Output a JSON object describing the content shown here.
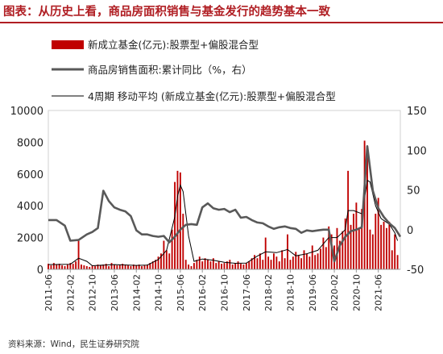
{
  "header": {
    "title": "图表：从历史上看，商品房面积销售与基金发行的趋势基本一致"
  },
  "footer": {
    "source": "资料来源：Wind，民生证券研究院"
  },
  "colors": {
    "bars": "#c00000",
    "line": "#595959",
    "ma": "#000000",
    "title": "#b01e23"
  },
  "chart_data": {
    "type": "bar",
    "x_ticks": [
      "2011-06",
      "2012-02",
      "2012-10",
      "2013-06",
      "2014-02",
      "2014-10",
      "2015-06",
      "2016-02",
      "2016-10",
      "2017-06",
      "2018-02",
      "2018-10",
      "2019-06",
      "2020-02",
      "2020-10",
      "2021-06"
    ],
    "left_axis": {
      "min": 0,
      "max": 10000,
      "ticks": [
        0,
        2000,
        4000,
        6000,
        8000,
        10000
      ]
    },
    "right_axis": {
      "min": -50,
      "max": 150,
      "ticks": [
        -50,
        0,
        50,
        100,
        150
      ]
    },
    "x_range": [
      "2011-06",
      "2022-02"
    ],
    "series": [
      {
        "name": "新成立基金(亿元):股票型+偏股混合型",
        "type": "bar",
        "axis": "left",
        "values": [
          {
            "x": "2011-06",
            "y": 350
          },
          {
            "x": "2011-07",
            "y": 250
          },
          {
            "x": "2011-08",
            "y": 400
          },
          {
            "x": "2011-09",
            "y": 300
          },
          {
            "x": "2011-10",
            "y": 350
          },
          {
            "x": "2011-11",
            "y": 250
          },
          {
            "x": "2011-12",
            "y": 200
          },
          {
            "x": "2012-01",
            "y": 300
          },
          {
            "x": "2012-02",
            "y": 400
          },
          {
            "x": "2012-03",
            "y": 350
          },
          {
            "x": "2012-04",
            "y": 500
          },
          {
            "x": "2012-05",
            "y": 1800
          },
          {
            "x": "2012-06",
            "y": 300
          },
          {
            "x": "2012-07",
            "y": 250
          },
          {
            "x": "2012-08",
            "y": 200
          },
          {
            "x": "2012-09",
            "y": 150
          },
          {
            "x": "2012-10",
            "y": 250
          },
          {
            "x": "2012-11",
            "y": 200
          },
          {
            "x": "2012-12",
            "y": 300
          },
          {
            "x": "2013-01",
            "y": 250
          },
          {
            "x": "2013-02",
            "y": 300
          },
          {
            "x": "2013-03",
            "y": 350
          },
          {
            "x": "2013-04",
            "y": 200
          },
          {
            "x": "2013-05",
            "y": 400
          },
          {
            "x": "2013-06",
            "y": 300
          },
          {
            "x": "2013-07",
            "y": 250
          },
          {
            "x": "2013-08",
            "y": 300
          },
          {
            "x": "2013-09",
            "y": 350
          },
          {
            "x": "2013-10",
            "y": 300
          },
          {
            "x": "2013-11",
            "y": 250
          },
          {
            "x": "2013-12",
            "y": 200
          },
          {
            "x": "2014-01",
            "y": 300
          },
          {
            "x": "2014-02",
            "y": 250
          },
          {
            "x": "2014-03",
            "y": 300
          },
          {
            "x": "2014-04",
            "y": 200
          },
          {
            "x": "2014-05",
            "y": 250
          },
          {
            "x": "2014-06",
            "y": 300
          },
          {
            "x": "2014-07",
            "y": 400
          },
          {
            "x": "2014-08",
            "y": 500
          },
          {
            "x": "2014-09",
            "y": 600
          },
          {
            "x": "2014-10",
            "y": 800
          },
          {
            "x": "2014-11",
            "y": 1000
          },
          {
            "x": "2014-12",
            "y": 1800
          },
          {
            "x": "2015-01",
            "y": 1200
          },
          {
            "x": "2015-02",
            "y": 1000
          },
          {
            "x": "2015-03",
            "y": 2500
          },
          {
            "x": "2015-04",
            "y": 5500
          },
          {
            "x": "2015-05",
            "y": 6200
          },
          {
            "x": "2015-06",
            "y": 6100
          },
          {
            "x": "2015-07",
            "y": 3500
          },
          {
            "x": "2015-08",
            "y": 600
          },
          {
            "x": "2015-09",
            "y": 300
          },
          {
            "x": "2015-10",
            "y": 200
          },
          {
            "x": "2015-11",
            "y": 400
          },
          {
            "x": "2015-12",
            "y": 600
          },
          {
            "x": "2016-01",
            "y": 800
          },
          {
            "x": "2016-02",
            "y": 500
          },
          {
            "x": "2016-03",
            "y": 700
          },
          {
            "x": "2016-04",
            "y": 600
          },
          {
            "x": "2016-05",
            "y": 500
          },
          {
            "x": "2016-06",
            "y": 700
          },
          {
            "x": "2016-07",
            "y": 400
          },
          {
            "x": "2016-08",
            "y": 500
          },
          {
            "x": "2016-09",
            "y": 350
          },
          {
            "x": "2016-10",
            "y": 400
          },
          {
            "x": "2016-11",
            "y": 500
          },
          {
            "x": "2016-12",
            "y": 600
          },
          {
            "x": "2017-01",
            "y": 300
          },
          {
            "x": "2017-02",
            "y": 400
          },
          {
            "x": "2017-03",
            "y": 500
          },
          {
            "x": "2017-04",
            "y": 350
          },
          {
            "x": "2017-05",
            "y": 300
          },
          {
            "x": "2017-06",
            "y": 400
          },
          {
            "x": "2017-07",
            "y": 500
          },
          {
            "x": "2017-08",
            "y": 700
          },
          {
            "x": "2017-09",
            "y": 900
          },
          {
            "x": "2017-10",
            "y": 700
          },
          {
            "x": "2017-11",
            "y": 1000
          },
          {
            "x": "2017-12",
            "y": 600
          },
          {
            "x": "2018-01",
            "y": 2000
          },
          {
            "x": "2018-02",
            "y": 800
          },
          {
            "x": "2018-03",
            "y": 600
          },
          {
            "x": "2018-04",
            "y": 1000
          },
          {
            "x": "2018-05",
            "y": 800
          },
          {
            "x": "2018-06",
            "y": 500
          },
          {
            "x": "2018-07",
            "y": 1200
          },
          {
            "x": "2018-08",
            "y": 700
          },
          {
            "x": "2018-09",
            "y": 2200
          },
          {
            "x": "2018-10",
            "y": 600
          },
          {
            "x": "2018-11",
            "y": 800
          },
          {
            "x": "2018-12",
            "y": 1100
          },
          {
            "x": "2019-01",
            "y": 900
          },
          {
            "x": "2019-02",
            "y": 700
          },
          {
            "x": "2019-03",
            "y": 1200
          },
          {
            "x": "2019-04",
            "y": 1000
          },
          {
            "x": "2019-05",
            "y": 800
          },
          {
            "x": "2019-06",
            "y": 1500
          },
          {
            "x": "2019-07",
            "y": 900
          },
          {
            "x": "2019-08",
            "y": 1000
          },
          {
            "x": "2019-09",
            "y": 1300
          },
          {
            "x": "2019-10",
            "y": 2000
          },
          {
            "x": "2019-11",
            "y": 1400
          },
          {
            "x": "2019-12",
            "y": 2700
          },
          {
            "x": "2020-01",
            "y": 2200
          },
          {
            "x": "2020-02",
            "y": 1500
          },
          {
            "x": "2020-03",
            "y": 2600
          },
          {
            "x": "2020-04",
            "y": 1800
          },
          {
            "x": "2020-05",
            "y": 2400
          },
          {
            "x": "2020-06",
            "y": 3200
          },
          {
            "x": "2020-07",
            "y": 6200
          },
          {
            "x": "2020-08",
            "y": 2800
          },
          {
            "x": "2020-09",
            "y": 3500
          },
          {
            "x": "2020-10",
            "y": 4200
          },
          {
            "x": "2020-11",
            "y": 2600
          },
          {
            "x": "2020-12",
            "y": 3800
          },
          {
            "x": "2021-01",
            "y": 8100
          },
          {
            "x": "2021-02",
            "y": 7700
          },
          {
            "x": "2021-03",
            "y": 2500
          },
          {
            "x": "2021-04",
            "y": 2200
          },
          {
            "x": "2021-05",
            "y": 3500
          },
          {
            "x": "2021-06",
            "y": 4500
          },
          {
            "x": "2021-07",
            "y": 2800
          },
          {
            "x": "2021-08",
            "y": 3000
          },
          {
            "x": "2021-09",
            "y": 2600
          },
          {
            "x": "2021-10",
            "y": 3000
          },
          {
            "x": "2021-11",
            "y": 1200
          },
          {
            "x": "2021-12",
            "y": 2200
          },
          {
            "x": "2022-01",
            "y": 900
          }
        ]
      },
      {
        "name": "商品房销售面积:累计同比（%，右）",
        "type": "line",
        "axis": "right",
        "values": [
          {
            "x": "2011-06",
            "y": 12
          },
          {
            "x": "2011-09",
            "y": 12
          },
          {
            "x": "2011-12",
            "y": 5
          },
          {
            "x": "2012-02",
            "y": -14
          },
          {
            "x": "2012-05",
            "y": -13
          },
          {
            "x": "2012-08",
            "y": -6
          },
          {
            "x": "2012-10",
            "y": -3
          },
          {
            "x": "2012-12",
            "y": 2
          },
          {
            "x": "2013-02",
            "y": 49
          },
          {
            "x": "2013-04",
            "y": 36
          },
          {
            "x": "2013-06",
            "y": 28
          },
          {
            "x": "2013-08",
            "y": 25
          },
          {
            "x": "2013-10",
            "y": 23
          },
          {
            "x": "2013-12",
            "y": 17
          },
          {
            "x": "2014-02",
            "y": -1
          },
          {
            "x": "2014-04",
            "y": -6
          },
          {
            "x": "2014-06",
            "y": -6
          },
          {
            "x": "2014-08",
            "y": -8
          },
          {
            "x": "2014-10",
            "y": -9
          },
          {
            "x": "2014-12",
            "y": -8
          },
          {
            "x": "2015-02",
            "y": -16
          },
          {
            "x": "2015-04",
            "y": -9
          },
          {
            "x": "2015-06",
            "y": 0
          },
          {
            "x": "2015-08",
            "y": 6
          },
          {
            "x": "2015-10",
            "y": 7
          },
          {
            "x": "2015-12",
            "y": 6
          },
          {
            "x": "2016-02",
            "y": 28
          },
          {
            "x": "2016-04",
            "y": 33
          },
          {
            "x": "2016-06",
            "y": 27
          },
          {
            "x": "2016-08",
            "y": 25
          },
          {
            "x": "2016-10",
            "y": 26
          },
          {
            "x": "2016-12",
            "y": 22
          },
          {
            "x": "2017-02",
            "y": 25
          },
          {
            "x": "2017-04",
            "y": 15
          },
          {
            "x": "2017-06",
            "y": 16
          },
          {
            "x": "2017-08",
            "y": 12
          },
          {
            "x": "2017-10",
            "y": 9
          },
          {
            "x": "2017-12",
            "y": 8
          },
          {
            "x": "2018-02",
            "y": 4
          },
          {
            "x": "2018-04",
            "y": 1
          },
          {
            "x": "2018-06",
            "y": 3
          },
          {
            "x": "2018-08",
            "y": 4
          },
          {
            "x": "2018-10",
            "y": 2
          },
          {
            "x": "2018-12",
            "y": 1
          },
          {
            "x": "2019-02",
            "y": -4
          },
          {
            "x": "2019-04",
            "y": -1
          },
          {
            "x": "2019-06",
            "y": -2
          },
          {
            "x": "2019-08",
            "y": -1
          },
          {
            "x": "2019-10",
            "y": 0
          },
          {
            "x": "2019-12",
            "y": 0
          },
          {
            "x": "2020-02",
            "y": -40
          },
          {
            "x": "2020-04",
            "y": -20
          },
          {
            "x": "2020-06",
            "y": -9
          },
          {
            "x": "2020-08",
            "y": -2
          },
          {
            "x": "2020-10",
            "y": 0
          },
          {
            "x": "2020-12",
            "y": 3
          },
          {
            "x": "2021-02",
            "y": 105
          },
          {
            "x": "2021-04",
            "y": 49
          },
          {
            "x": "2021-06",
            "y": 27
          },
          {
            "x": "2021-08",
            "y": 16
          },
          {
            "x": "2021-10",
            "y": 8
          },
          {
            "x": "2021-12",
            "y": 2
          },
          {
            "x": "2022-02",
            "y": -9
          }
        ]
      },
      {
        "name": "4周期 移动平均 (新成立基金(亿元):股票型+偏股混合型",
        "type": "line",
        "axis": "left",
        "values": [
          {
            "x": "2011-06",
            "y": 300
          },
          {
            "x": "2012-02",
            "y": 320
          },
          {
            "x": "2012-05",
            "y": 700
          },
          {
            "x": "2012-08",
            "y": 500
          },
          {
            "x": "2012-10",
            "y": 230
          },
          {
            "x": "2013-06",
            "y": 300
          },
          {
            "x": "2014-02",
            "y": 250
          },
          {
            "x": "2014-06",
            "y": 270
          },
          {
            "x": "2014-10",
            "y": 620
          },
          {
            "x": "2015-01",
            "y": 1200
          },
          {
            "x": "2015-04",
            "y": 3300
          },
          {
            "x": "2015-05",
            "y": 4600
          },
          {
            "x": "2015-06",
            "y": 5300
          },
          {
            "x": "2015-07",
            "y": 4900
          },
          {
            "x": "2015-09",
            "y": 2100
          },
          {
            "x": "2015-11",
            "y": 500
          },
          {
            "x": "2016-02",
            "y": 650
          },
          {
            "x": "2016-06",
            "y": 570
          },
          {
            "x": "2016-10",
            "y": 440
          },
          {
            "x": "2017-02",
            "y": 380
          },
          {
            "x": "2017-06",
            "y": 390
          },
          {
            "x": "2017-10",
            "y": 830
          },
          {
            "x": "2018-01",
            "y": 1100
          },
          {
            "x": "2018-05",
            "y": 1050
          },
          {
            "x": "2018-09",
            "y": 1250
          },
          {
            "x": "2018-12",
            "y": 850
          },
          {
            "x": "2019-04",
            "y": 980
          },
          {
            "x": "2019-08",
            "y": 1200
          },
          {
            "x": "2019-12",
            "y": 2000
          },
          {
            "x": "2020-03",
            "y": 2000
          },
          {
            "x": "2020-06",
            "y": 2500
          },
          {
            "x": "2020-07",
            "y": 3700
          },
          {
            "x": "2020-09",
            "y": 3700
          },
          {
            "x": "2020-12",
            "y": 3500
          },
          {
            "x": "2021-01",
            "y": 4500
          },
          {
            "x": "2021-02",
            "y": 5600
          },
          {
            "x": "2021-03",
            "y": 5500
          },
          {
            "x": "2021-05",
            "y": 4000
          },
          {
            "x": "2021-07",
            "y": 3200
          },
          {
            "x": "2021-10",
            "y": 2850
          },
          {
            "x": "2021-12",
            "y": 2300
          },
          {
            "x": "2022-01",
            "y": 1800
          }
        ]
      }
    ],
    "legend": [
      {
        "label": "新成立基金(亿元):股票型+偏股混合型",
        "kind": "bar"
      },
      {
        "label": "商品房销售面积:累计同比（%，右）",
        "kind": "thick-line"
      },
      {
        "label": "4周期 移动平均 (新成立基金(亿元):股票型+偏股混合型",
        "kind": "thin-line"
      }
    ]
  }
}
